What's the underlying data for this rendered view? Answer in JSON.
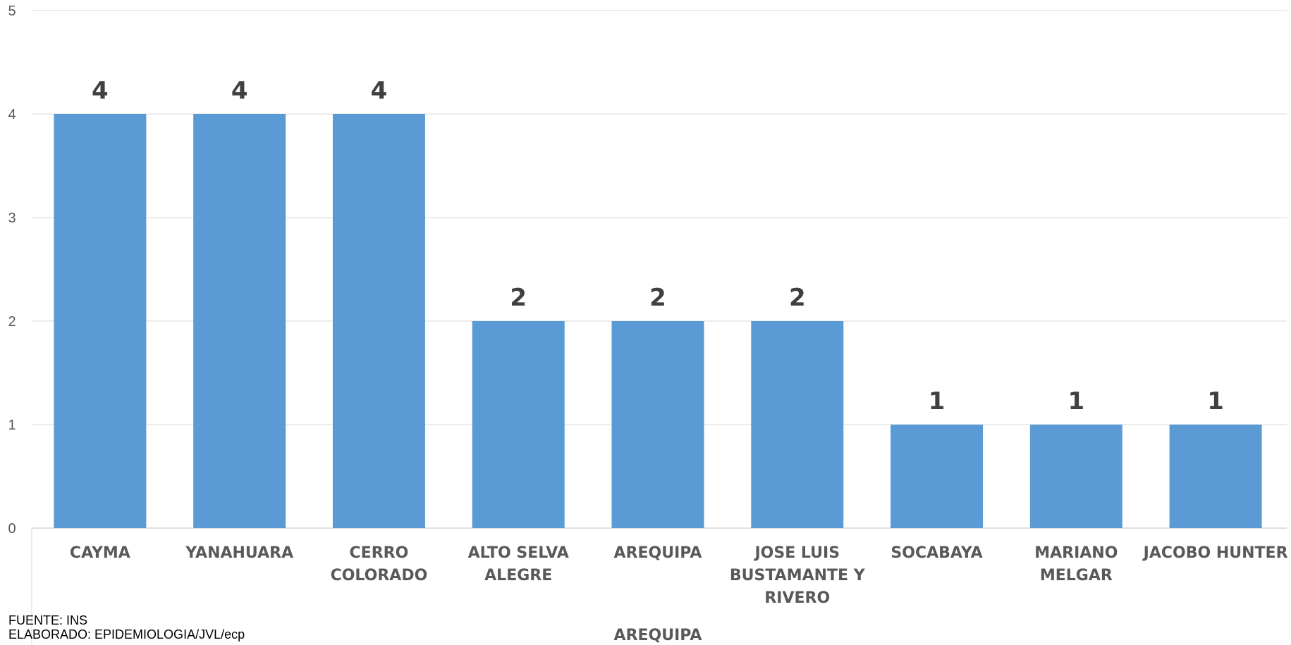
{
  "chart_data": {
    "type": "bar",
    "categories": [
      "CAYMA",
      "YANAHUARA",
      "CERRO COLORADO",
      "ALTO SELVA ALEGRE",
      "AREQUIPA",
      "JOSE LUIS BUSTAMANTE Y RIVERO",
      "SOCABAYA",
      "MARIANO MELGAR",
      "JACOBO HUNTER"
    ],
    "category_lines": [
      [
        "CAYMA"
      ],
      [
        "YANAHUARA"
      ],
      [
        "CERRO",
        "COLORADO"
      ],
      [
        "ALTO SELVA",
        "ALEGRE"
      ],
      [
        "AREQUIPA"
      ],
      [
        "JOSE LUIS",
        "BUSTAMANTE Y",
        "RIVERO"
      ],
      [
        "SOCABAYA"
      ],
      [
        "MARIANO",
        "MELGAR"
      ],
      [
        "JACOBO HUNTER"
      ]
    ],
    "values": [
      4,
      4,
      4,
      2,
      2,
      2,
      1,
      1,
      1
    ],
    "data_labels": [
      "4",
      "4",
      "4",
      "2",
      "2",
      "2",
      "1",
      "1",
      "1"
    ],
    "ylim": [
      0,
      5
    ],
    "yticks": [
      "0",
      "1",
      "2",
      "3",
      "4",
      "5"
    ],
    "group_label": "AREQUIPA",
    "bar_color": "#5b9bd5",
    "grid": true,
    "legend": "none"
  },
  "source_note": {
    "line1": "FUENTE: INS",
    "line2": "ELABORADO: EPIDEMIOLOGIA/JVL/ecp"
  }
}
